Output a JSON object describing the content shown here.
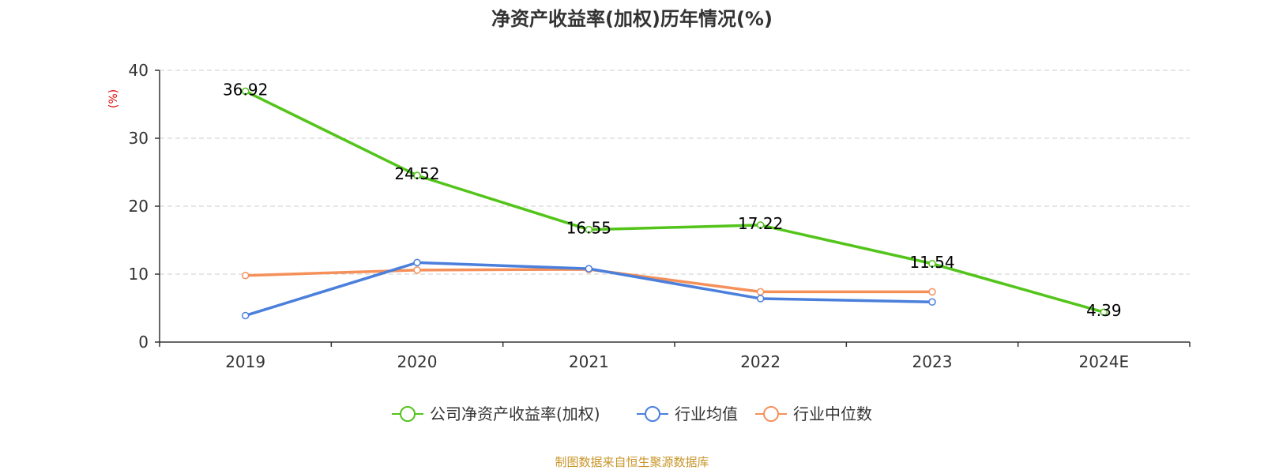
{
  "chart_data": {
    "type": "line",
    "title": "净资产收益率(加权)历年情况(%)",
    "ylabel": "(%)",
    "xlabel": "",
    "categories": [
      "2019",
      "2020",
      "2021",
      "2022",
      "2023",
      "2024E"
    ],
    "ylim": [
      0,
      40
    ],
    "yticks": [
      0,
      10,
      20,
      30,
      40
    ],
    "grid": true,
    "legend_position": "bottom",
    "series": [
      {
        "name": "公司净资产收益率(加权)",
        "color": "#52c41a",
        "values": [
          36.92,
          24.52,
          16.55,
          17.22,
          11.54,
          4.39
        ],
        "labels": [
          "36.92",
          "24.52",
          "16.55",
          "17.22",
          "11.54",
          "4.39"
        ]
      },
      {
        "name": "行业均值",
        "color": "#4a7fdc",
        "values": [
          3.9,
          11.7,
          10.8,
          6.4,
          5.9,
          null
        ]
      },
      {
        "name": "行业中位数",
        "color": "#f5905a",
        "values": [
          9.8,
          10.6,
          10.7,
          7.4,
          7.4,
          null
        ]
      }
    ],
    "source": "制图数据来自恒生聚源数据库"
  }
}
